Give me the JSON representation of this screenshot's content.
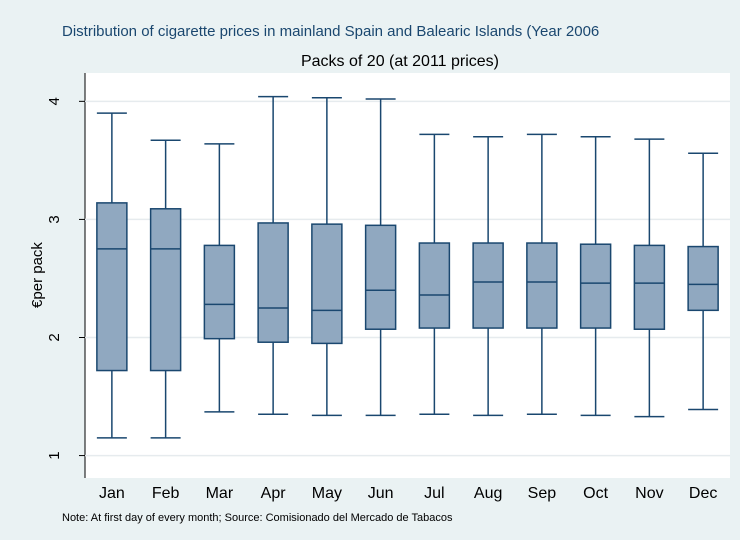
{
  "chart_data": {
    "type": "box",
    "title": "Distribution of cigarette prices in mainland Spain and Balearic Islands (Year 2006",
    "subtitle": "Packs of 20 (at 2011 prices)",
    "y_label": "€per pack",
    "note": "Note: At first day of every month; Source: Comisionado del Mercado de Tabacos",
    "categories": [
      "Jan",
      "Feb",
      "Mar",
      "Apr",
      "May",
      "Jun",
      "Jul",
      "Aug",
      "Sep",
      "Oct",
      "Nov",
      "Dec"
    ],
    "min": [
      1.15,
      1.15,
      1.37,
      1.35,
      1.34,
      1.34,
      1.35,
      1.34,
      1.35,
      1.34,
      1.33,
      1.39
    ],
    "q1": [
      1.72,
      1.72,
      1.99,
      1.96,
      1.95,
      2.07,
      2.08,
      2.08,
      2.08,
      2.08,
      2.07,
      2.23
    ],
    "median": [
      2.75,
      2.75,
      2.28,
      2.25,
      2.23,
      2.4,
      2.36,
      2.47,
      2.47,
      2.46,
      2.46,
      2.45
    ],
    "q3": [
      3.14,
      3.09,
      2.78,
      2.97,
      2.96,
      2.95,
      2.8,
      2.8,
      2.8,
      2.79,
      2.78,
      2.77
    ],
    "max": [
      3.9,
      3.67,
      3.64,
      4.04,
      4.03,
      4.02,
      3.72,
      3.7,
      3.72,
      3.7,
      3.68,
      3.56
    ],
    "color": "#90a8c0",
    "ylim": [
      0.81,
      4.24
    ],
    "yticks": [
      1,
      2,
      3,
      4
    ],
    "grid": true
  }
}
